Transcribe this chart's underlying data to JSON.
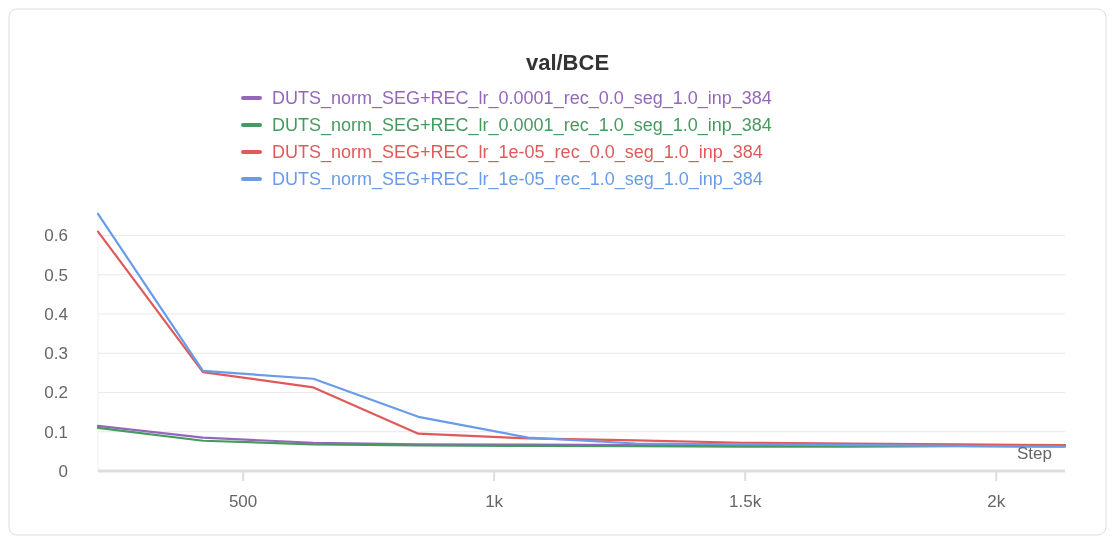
{
  "chart_data": {
    "type": "line",
    "title": "val/BCE",
    "xlabel": "Step",
    "legend": "top",
    "grid": "y",
    "line_style": "solid",
    "marker": "none",
    "x": [
      211,
      420,
      640,
      849,
      1068,
      1282,
      1496,
      1710,
      1924,
      2137
    ],
    "xlim": [
      211,
      2137
    ],
    "xticks": [
      {
        "value": 500,
        "label": "500"
      },
      {
        "value": 1000,
        "label": "1k"
      },
      {
        "value": 1500,
        "label": "1.5k"
      },
      {
        "value": 2000,
        "label": "2k"
      }
    ],
    "ylim": [
      0,
      0.67
    ],
    "yticks": [
      0,
      0.1,
      0.2,
      0.3,
      0.4,
      0.5,
      0.6
    ],
    "series": [
      {
        "name": "DUTS_norm_SEG+REC_lr_0.0001_rec_0.0_seg_1.0_inp_384",
        "color": "#9467bd",
        "values": [
          0.115,
          0.085,
          0.072,
          0.068,
          0.067,
          0.066,
          0.066,
          0.065,
          0.064,
          0.063
        ]
      },
      {
        "name": "DUTS_norm_SEG+REC_lr_0.0001_rec_1.0_seg_1.0_inp_384",
        "color": "#479a5f",
        "values": [
          0.11,
          0.077,
          0.068,
          0.065,
          0.064,
          0.063,
          0.062,
          0.062,
          0.063,
          0.063
        ]
      },
      {
        "name": "DUTS_norm_SEG+REC_lr_1e-05_rec_0.0_seg_1.0_inp_384",
        "color": "#e05a5a",
        "values": [
          0.61,
          0.252,
          0.213,
          0.095,
          0.083,
          0.078,
          0.072,
          0.07,
          0.068,
          0.066
        ]
      },
      {
        "name": "DUTS_norm_SEG+REC_lr_1e-05_rec_1.0_seg_1.0_inp_384",
        "color": "#6a9be8",
        "values": [
          0.655,
          0.255,
          0.235,
          0.138,
          0.085,
          0.07,
          0.068,
          0.066,
          0.064,
          0.062
        ]
      }
    ]
  }
}
